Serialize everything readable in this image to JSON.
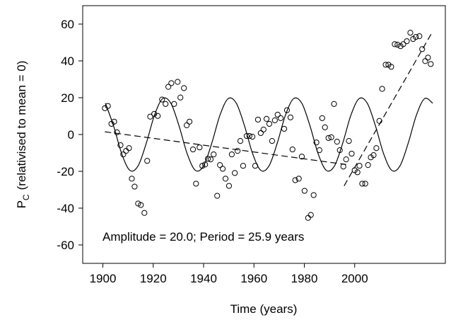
{
  "chart_data": {
    "type": "scatter",
    "y_label": {
      "main": "P",
      "sub": "C",
      "rest": "(relativised to mean = 0)"
    },
    "x_label": "Time (years)",
    "annotation": "Amplitude = 20.0; Period = 25.9 years",
    "xlim": [
      1892,
      2036
    ],
    "xticks": [
      1900,
      1920,
      1940,
      1960,
      1980,
      2000
    ],
    "ylim": [
      -70,
      70
    ],
    "yticks": [
      -60,
      -40,
      -20,
      0,
      20,
      40,
      60
    ],
    "color": "#000000",
    "x": [
      1900.8,
      1902.0,
      1903.4,
      1904.5,
      1905.6,
      1907.0,
      1908.1,
      1909.2,
      1910.4,
      1911.5,
      1912.6,
      1914.0,
      1915.1,
      1916.5,
      1917.6,
      1918.8,
      1920.4,
      1921.8,
      1923.5,
      1924.9,
      1926.0,
      1927.2,
      1928.3,
      1929.7,
      1930.8,
      1932.2,
      1933.3,
      1934.4,
      1935.8,
      1937.0,
      1938.4,
      1939.5,
      1940.6,
      1941.7,
      1942.8,
      1944.0,
      1945.4,
      1946.5,
      1947.6,
      1948.7,
      1950.1,
      1951.2,
      1952.4,
      1953.5,
      1954.6,
      1955.7,
      1957.1,
      1958.2,
      1959.4,
      1960.5,
      1961.6,
      1962.7,
      1963.8,
      1965.0,
      1966.1,
      1967.2,
      1968.3,
      1969.4,
      1970.6,
      1972.0,
      1973.1,
      1974.5,
      1975.3,
      1976.4,
      1977.8,
      1979.0,
      1980.1,
      1981.5,
      1982.6,
      1983.7,
      1984.8,
      1986.0,
      1987.1,
      1988.2,
      1989.6,
      1990.7,
      1991.8,
      1993.0,
      1994.1,
      1995.5,
      1996.6,
      1997.7,
      1998.8,
      2000.0,
      2001.1,
      2001.9,
      2003.0,
      2004.2,
      2005.3,
      2006.4,
      2007.5,
      2008.6,
      2009.8,
      2010.9,
      2012.3,
      2013.4,
      2014.5,
      2015.9,
      2017.0,
      2018.2,
      2019.3,
      2020.7,
      2022.1,
      2023.2,
      2024.3,
      2025.7,
      2026.8,
      2028.0,
      2029.1,
      2030.2
    ],
    "values": [
      14.3,
      15.5,
      5.8,
      7.0,
      1.2,
      -5.8,
      -10.8,
      -8.9,
      -7.4,
      -24.0,
      -28.3,
      -37.5,
      -38.3,
      -42.6,
      -14.3,
      9.7,
      11.2,
      10.1,
      19.0,
      16.6,
      25.9,
      27.9,
      16.6,
      28.6,
      20.1,
      25.2,
      5.0,
      7.0,
      -8.1,
      -26.7,
      -7.0,
      -17.0,
      -16.3,
      -13.2,
      -13.5,
      -10.8,
      -33.3,
      -16.6,
      -18.6,
      -24.0,
      -27.9,
      -10.8,
      -20.9,
      -8.9,
      -3.5,
      -17.0,
      -0.8,
      -0.8,
      -1.2,
      -17.0,
      8.1,
      0.8,
      2.7,
      8.5,
      5.8,
      -3.5,
      7.7,
      10.8,
      8.9,
      3.1,
      13.2,
      9.3,
      -8.1,
      -24.8,
      -24.0,
      -12.0,
      -30.6,
      -45.3,
      -43.7,
      -32.9,
      -4.3,
      -8.5,
      8.9,
      3.9,
      -1.9,
      -1.5,
      16.6,
      -3.9,
      -8.5,
      -17.4,
      -13.5,
      -3.5,
      -10.4,
      -19.4,
      -20.5,
      -17.0,
      -26.7,
      -26.7,
      -16.6,
      -12.4,
      -11.2,
      -7.4,
      7.4,
      24.8,
      37.9,
      37.9,
      36.8,
      49.1,
      48.8,
      48.0,
      49.1,
      50.7,
      55.3,
      51.9,
      53.0,
      53.4,
      46.4,
      39.9,
      41.8,
      38.3
    ],
    "lines": [
      {
        "style": "solid",
        "smooth": true,
        "x": [
          1901,
          1904.25,
          1907.5,
          1910.75,
          1914,
          1917.25,
          1920.5,
          1923.75,
          1927,
          1930.25,
          1933.5,
          1936.75,
          1940,
          1943.25,
          1946.5,
          1949.75,
          1953,
          1956.25,
          1959.5,
          1962.75,
          1966,
          1969.25,
          1972.5,
          1975.75,
          1979,
          1982.25,
          1985.5,
          1988.75,
          1992,
          1995.25,
          1998.5,
          2001.75,
          2005,
          2008.25,
          2011.5,
          2014.75,
          2018,
          2021.25,
          2024.5,
          2027.75,
          2031
        ],
        "values": [
          17,
          4.7,
          -10.5,
          -19.5,
          -17,
          -4.7,
          10.5,
          19.5,
          17,
          4.7,
          -10.5,
          -19.5,
          -17,
          -4.7,
          10.5,
          19.5,
          17,
          4.7,
          -10.5,
          -19.5,
          -17,
          -4.7,
          10.5,
          19.5,
          17,
          4.7,
          -10.5,
          -19.5,
          -17,
          -4.7,
          10.5,
          19.5,
          17,
          4.7,
          -10.5,
          -19.5,
          -17,
          -4.7,
          10.5,
          19.5,
          17
        ]
      },
      {
        "style": "dashed",
        "smooth": false,
        "x": [
          1900.8,
          1996.6
        ],
        "values": [
          1.5,
          -16.3
        ]
      },
      {
        "style": "dashed",
        "smooth": false,
        "x": [
          1995.8,
          2031.0
        ],
        "values": [
          -27.9,
          56.1
        ]
      }
    ]
  }
}
